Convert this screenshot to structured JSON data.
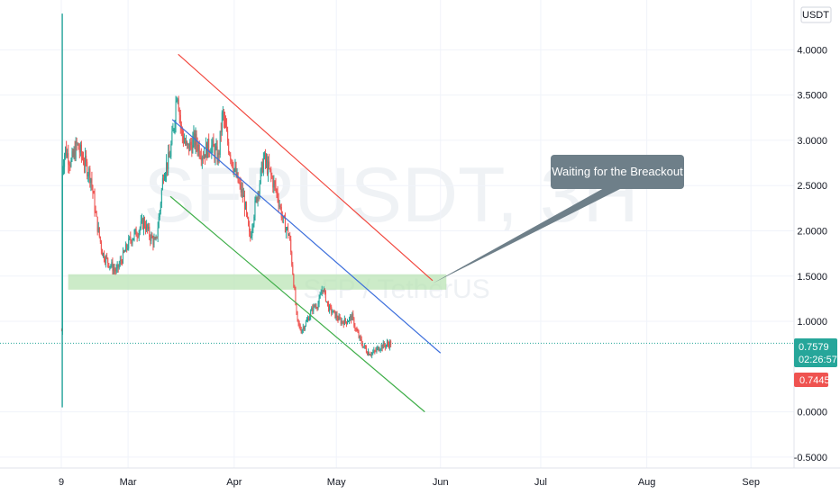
{
  "chart_data": {
    "type": "candlestick",
    "symbol_watermark": "SFPUSDT, 3H",
    "pair_watermark": "SFP / TetherUS",
    "currency_label": "USDT",
    "y_ticks": [
      "4.0000",
      "3.5000",
      "3.0000",
      "2.5000",
      "2.0000",
      "1.5000",
      "1.0000",
      "0.0000",
      "-0.5000"
    ],
    "ylim": [
      -0.62,
      4.55
    ],
    "x_ticks": [
      "9",
      "Mar",
      "Apr",
      "May",
      "Jun",
      "Jul",
      "Aug",
      "Sep"
    ],
    "last_price": "0.7579",
    "countdown": "02:26:57",
    "low_price": "0.7445",
    "colors": {
      "up": "#26a69a",
      "down": "#ef5350",
      "price_tag": "#26a69a",
      "low_tag": "#ef5350",
      "callout": "#6e7f89",
      "red_line": "#f2483f",
      "blue_line": "#3d6fdc",
      "green_line": "#3fae49",
      "support_zone": "#b7e3b1"
    },
    "price_path": [
      [
        0.02,
        0.9
      ],
      [
        0.05,
        2.7
      ],
      [
        0.2,
        2.9
      ],
      [
        0.5,
        2.75
      ],
      [
        0.8,
        2.95
      ],
      [
        1.1,
        2.8
      ],
      [
        1.5,
        2.6
      ],
      [
        1.8,
        2.1
      ],
      [
        2.1,
        1.75
      ],
      [
        2.4,
        1.65
      ],
      [
        2.8,
        1.55
      ],
      [
        3.1,
        1.7
      ],
      [
        3.5,
        1.9
      ],
      [
        3.9,
        2.0
      ],
      [
        4.2,
        2.1
      ],
      [
        4.5,
        1.95
      ],
      [
        4.8,
        1.85
      ],
      [
        5.0,
        2.2
      ],
      [
        5.2,
        2.65
      ],
      [
        5.5,
        2.8
      ],
      [
        5.7,
        3.1
      ],
      [
        5.9,
        3.6
      ],
      [
        6.1,
        3.1
      ],
      [
        6.4,
        2.9
      ],
      [
        6.8,
        3.0
      ],
      [
        7.2,
        2.85
      ],
      [
        7.6,
        2.95
      ],
      [
        8.0,
        2.8
      ],
      [
        8.2,
        3.3
      ],
      [
        8.5,
        2.95
      ],
      [
        8.9,
        2.6
      ],
      [
        9.3,
        2.35
      ],
      [
        9.6,
        1.9
      ],
      [
        9.8,
        2.2
      ],
      [
        10.1,
        2.55
      ],
      [
        10.3,
        2.8
      ],
      [
        10.6,
        2.65
      ],
      [
        11.0,
        2.4
      ],
      [
        11.3,
        2.1
      ],
      [
        11.6,
        1.95
      ],
      [
        11.8,
        1.5
      ],
      [
        12.0,
        1.0
      ],
      [
        12.2,
        0.9
      ],
      [
        12.5,
        1.0
      ],
      [
        12.8,
        1.15
      ],
      [
        13.1,
        1.2
      ],
      [
        13.3,
        1.38
      ],
      [
        13.6,
        1.15
      ],
      [
        13.9,
        1.08
      ],
      [
        14.2,
        1.0
      ],
      [
        14.5,
        1.0
      ],
      [
        14.8,
        1.05
      ],
      [
        15.0,
        0.9
      ],
      [
        15.3,
        0.75
      ],
      [
        15.6,
        0.66
      ],
      [
        15.9,
        0.65
      ],
      [
        16.2,
        0.72
      ],
      [
        16.5,
        0.74
      ],
      [
        16.8,
        0.76
      ]
    ],
    "channel": {
      "red": [
        [
          5.95,
          3.95
        ],
        [
          18.9,
          1.45
        ]
      ],
      "blue": [
        [
          5.65,
          3.23
        ],
        [
          19.3,
          0.65
        ]
      ],
      "green": [
        [
          5.55,
          2.38
        ],
        [
          18.5,
          0.0
        ]
      ]
    },
    "support_zone": {
      "y_low": 1.35,
      "y_high": 1.52,
      "x_start": 0.35,
      "x_end": 19.6
    },
    "annotation": {
      "text": "Waiting for the Breackout",
      "target": [
        18.9,
        1.42
      ]
    }
  }
}
